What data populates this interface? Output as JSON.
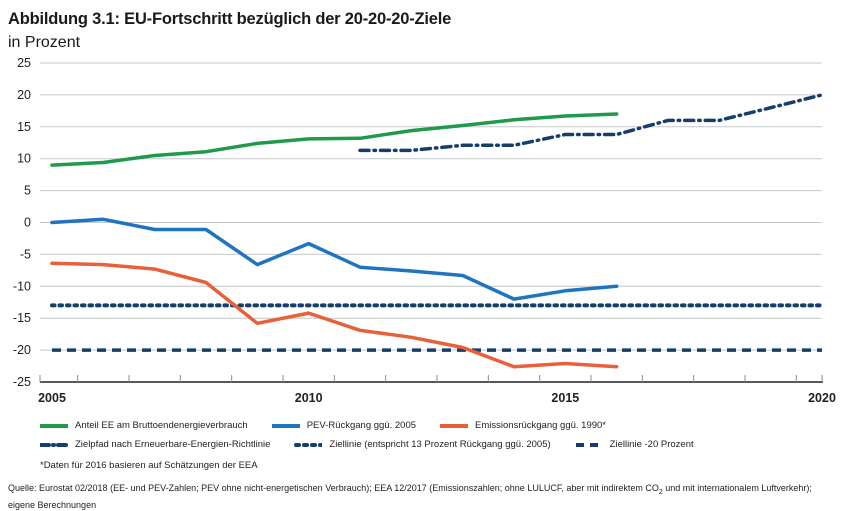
{
  "header": {
    "title": "Abbildung 3.1: EU-Fortschritt bezüglich der 20-20-20-Ziele",
    "subtitle": "in Prozent"
  },
  "chart_data": {
    "type": "line",
    "title": "Abbildung 3.1: EU-Fortschritt bezüglich der 20-20-20-Ziele",
    "subtitle": "in Prozent",
    "xlabel": "",
    "ylabel": "in Prozent",
    "xlim": [
      2005,
      2020
    ],
    "ylim": [
      -25,
      25
    ],
    "x_ticks": [
      2005,
      2010,
      2015,
      2020
    ],
    "y_ticks": [
      25,
      20,
      15,
      10,
      5,
      0,
      -5,
      -10,
      -15,
      -20,
      -25
    ],
    "grid": "horizontal",
    "legend_position": "bottom",
    "series": [
      {
        "name": "Anteil EE am Bruttoendenergieverbrauch",
        "color": "#1f9a4b",
        "style": "solid",
        "x": [
          2005,
          2006,
          2007,
          2008,
          2009,
          2010,
          2011,
          2012,
          2013,
          2014,
          2015,
          2016
        ],
        "values": [
          9.0,
          9.4,
          10.5,
          11.1,
          12.4,
          13.1,
          13.2,
          14.4,
          15.2,
          16.1,
          16.7,
          17.0
        ]
      },
      {
        "name": "PEV-Rückgang ggü. 2005",
        "color": "#1f74c0",
        "style": "solid",
        "x": [
          2005,
          2006,
          2007,
          2008,
          2009,
          2010,
          2011,
          2012,
          2013,
          2014,
          2015,
          2016
        ],
        "values": [
          0.0,
          0.5,
          -1.1,
          -1.1,
          -6.6,
          -3.3,
          -7.0,
          -7.6,
          -8.3,
          -12.0,
          -10.7,
          -10.0
        ]
      },
      {
        "name": "Emissionsrückgang ggü. 1990*",
        "color": "#e8603a",
        "style": "solid",
        "x": [
          2005,
          2006,
          2007,
          2008,
          2009,
          2010,
          2011,
          2012,
          2013,
          2014,
          2015,
          2016
        ],
        "values": [
          -6.4,
          -6.6,
          -7.3,
          -9.4,
          -15.8,
          -14.2,
          -16.9,
          -18.0,
          -19.6,
          -22.6,
          -22.1,
          -22.6
        ]
      },
      {
        "name": "Zielpfad nach Erneuerbare-Energien-Richtlinie",
        "color": "#163e6b",
        "style": "dashdot",
        "x": [
          2011,
          2012,
          2013,
          2014,
          2015,
          2016,
          2017,
          2018,
          2019,
          2020
        ],
        "values": [
          11.3,
          11.3,
          12.1,
          12.1,
          13.8,
          13.8,
          16.0,
          16.0,
          18.0,
          20.0
        ]
      },
      {
        "name": "Ziellinie (entspricht 13 Prozent Rückgang ggü. 2005)",
        "color": "#163e6b",
        "style": "dotted",
        "x": [
          2005,
          2020
        ],
        "values": [
          -13,
          -13
        ]
      },
      {
        "name": "Ziellinie -20 Prozent",
        "color": "#163e6b",
        "style": "dashed",
        "x": [
          2005,
          2020
        ],
        "values": [
          -20,
          -20
        ]
      }
    ],
    "annotations": [
      "*Daten für 2016 basieren auf Schätzungen der EEA"
    ]
  },
  "legend": {
    "row1": [
      {
        "label": "Anteil EE am Bruttoendenergieverbrauch",
        "color": "#1f9a4b"
      },
      {
        "label": "PEV-Rückgang ggü. 2005",
        "color": "#1f74c0"
      },
      {
        "label": "Emissionsrückgang ggü. 1990*",
        "color": "#e8603a"
      }
    ],
    "row2": [
      {
        "label": "Zielpfad nach Erneuerbare-Energien-Richtlinie",
        "color": "#163e6b"
      },
      {
        "label": "Ziellinie (entspricht 13 Prozent Rückgang ggü. 2005)",
        "color": "#163e6b"
      },
      {
        "label": "Ziellinie -20 Prozent",
        "color": "#163e6b"
      }
    ]
  },
  "footnote": "*Daten für 2016 basieren auf Schätzungen der EEA",
  "source": {
    "line1_pre": "Quelle: Eurostat 02/2018 (EE- und PEV-Zahlen; PEV ohne nicht-energetischen Verbrauch); EEA 12/2017 (Emissionszahlen; ohne LULUCF, aber mit indirektem CO",
    "line1_sub": "2",
    "line1_post": " und mit internationalem Luftverkehr);",
    "line2": "eigene Berechnungen"
  }
}
